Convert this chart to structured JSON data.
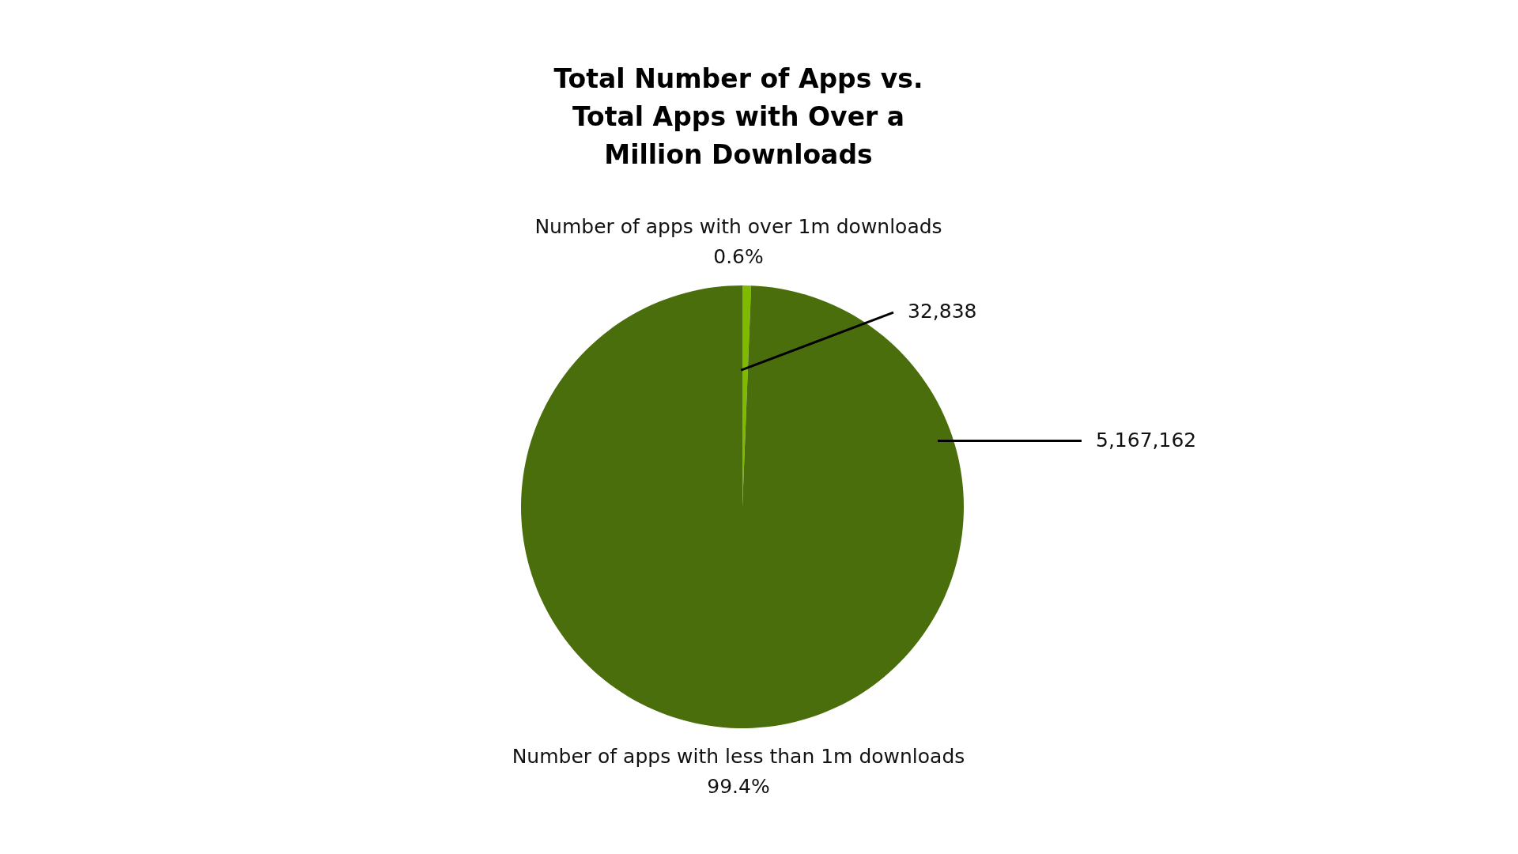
{
  "chart_data": {
    "type": "pie",
    "title": "Total Number of Apps vs.\nTotal Apps with Over a\nMillion Downloads",
    "categories": [
      "Number of apps with over 1m downloads",
      "Number of apps with less than 1m downloads"
    ],
    "values": [
      32838,
      5167162
    ],
    "colors": [
      "#7fba00",
      "#4a6e0c"
    ],
    "value_labels": [
      "32,838",
      "5,167,162"
    ],
    "annotations": [
      "0.6%",
      "99.4%"
    ],
    "legend": false
  }
}
